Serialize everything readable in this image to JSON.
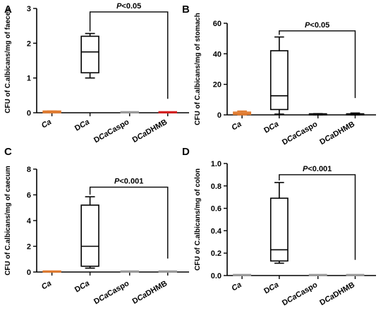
{
  "chart_data": [
    {
      "type": "box",
      "panel_label": "A",
      "ylabel": "CFU of C.albicans/mg of faeces",
      "ylim": [
        0,
        3
      ],
      "yticks": [
        "0",
        "1",
        "2",
        "3"
      ],
      "categories": [
        "Ca",
        "DCa",
        "DCaCaspo",
        "DCaDHMB"
      ],
      "boxes": [
        {
          "min": 0.0,
          "q1": 0.0,
          "median": 0.03,
          "q3": 0.05,
          "max": 0.05,
          "color": "#e07a2e"
        },
        {
          "min": 1.0,
          "q1": 1.15,
          "median": 1.75,
          "q3": 2.2,
          "max": 2.28,
          "color": "#000000"
        },
        {
          "min": 0.0,
          "q1": 0.0,
          "median": 0.0,
          "q3": 0.01,
          "max": 0.01,
          "color": "#9a9a9a"
        },
        {
          "min": 0.0,
          "q1": 0.0,
          "median": 0.0,
          "q3": 0.01,
          "max": 0.01,
          "color": "#d42020"
        }
      ],
      "bracket": {
        "from": 1,
        "to": 3,
        "y": 2.9,
        "drop_to": 0.4
      },
      "annotation": {
        "p": "P",
        "rest": "<0.05"
      }
    },
    {
      "type": "box",
      "panel_label": "B",
      "ylabel": "CFU of C.albicans/mg of stomach",
      "ylim": [
        0,
        60
      ],
      "yticks": [
        "0",
        "20",
        "40",
        "60"
      ],
      "categories": [
        "Ca",
        "DCa",
        "DCaCaspo",
        "DCaDHMB"
      ],
      "boxes": [
        {
          "min": 0.0,
          "q1": 0.3,
          "median": 1.0,
          "q3": 1.8,
          "max": 2.5,
          "color": "#e07a2e"
        },
        {
          "min": 0.5,
          "q1": 3.5,
          "median": 12.5,
          "q3": 42.0,
          "max": 51.0,
          "color": "#000000"
        },
        {
          "min": 0.0,
          "q1": 0.0,
          "median": 0.2,
          "q3": 0.5,
          "max": 0.8,
          "color": "#000000"
        },
        {
          "min": 0.0,
          "q1": 0.0,
          "median": 0.3,
          "q3": 0.6,
          "max": 1.2,
          "color": "#000000"
        }
      ],
      "bracket": {
        "from": 1,
        "to": 3,
        "y": 55,
        "drop_to": 11
      },
      "annotation": {
        "p": "P",
        "rest": "<0.05"
      }
    },
    {
      "type": "box",
      "panel_label": "C",
      "ylabel": "CFU of C.albicans/mg of caecum",
      "ylim": [
        0,
        8
      ],
      "yticks": [
        "0",
        "2",
        "4",
        "6",
        "8"
      ],
      "categories": [
        "Ca",
        "DCa",
        "DCaCaspo",
        "DCaDHMB"
      ],
      "boxes": [
        {
          "min": 0.0,
          "q1": 0.0,
          "median": 0.02,
          "q3": 0.05,
          "max": 0.05,
          "color": "#e07a2e"
        },
        {
          "min": 0.3,
          "q1": 0.45,
          "median": 2.0,
          "q3": 5.2,
          "max": 5.85,
          "color": "#000000"
        },
        {
          "min": 0.0,
          "q1": 0.0,
          "median": 0.0,
          "q3": 0.02,
          "max": 0.02,
          "color": "#9a9a9a"
        },
        {
          "min": 0.0,
          "q1": 0.0,
          "median": 0.0,
          "q3": 0.02,
          "max": 0.02,
          "color": "#9a9a9a"
        }
      ],
      "bracket": {
        "from": 1,
        "to": 3,
        "y": 6.6,
        "drop_to": 1.05
      },
      "annotation": {
        "p": "P",
        "rest": "<0.001"
      }
    },
    {
      "type": "box",
      "panel_label": "D",
      "ylabel": "CFU of C.albicans/mg of colon",
      "ylim": [
        0,
        1.0
      ],
      "yticks": [
        "0.0",
        "0.2",
        "0.4",
        "0.6",
        "0.8",
        "1.0"
      ],
      "categories": [
        "Ca",
        "DCa",
        "DCaCaspo",
        "DCaDHMB"
      ],
      "boxes": [
        {
          "min": 0.0,
          "q1": 0.0,
          "median": 0.0,
          "q3": 0.002,
          "max": 0.002,
          "color": "#9a9a9a"
        },
        {
          "min": 0.11,
          "q1": 0.13,
          "median": 0.23,
          "q3": 0.69,
          "max": 0.83,
          "color": "#000000"
        },
        {
          "min": 0.0,
          "q1": 0.0,
          "median": 0.0,
          "q3": 0.002,
          "max": 0.002,
          "color": "#9a9a9a"
        },
        {
          "min": 0.0,
          "q1": 0.0,
          "median": 0.0,
          "q3": 0.002,
          "max": 0.002,
          "color": "#9a9a9a"
        }
      ],
      "bracket": {
        "from": 1,
        "to": 3,
        "y": 0.9,
        "drop_to": 0.14
      },
      "annotation": {
        "p": "P",
        "rest": "<0.001"
      }
    }
  ]
}
